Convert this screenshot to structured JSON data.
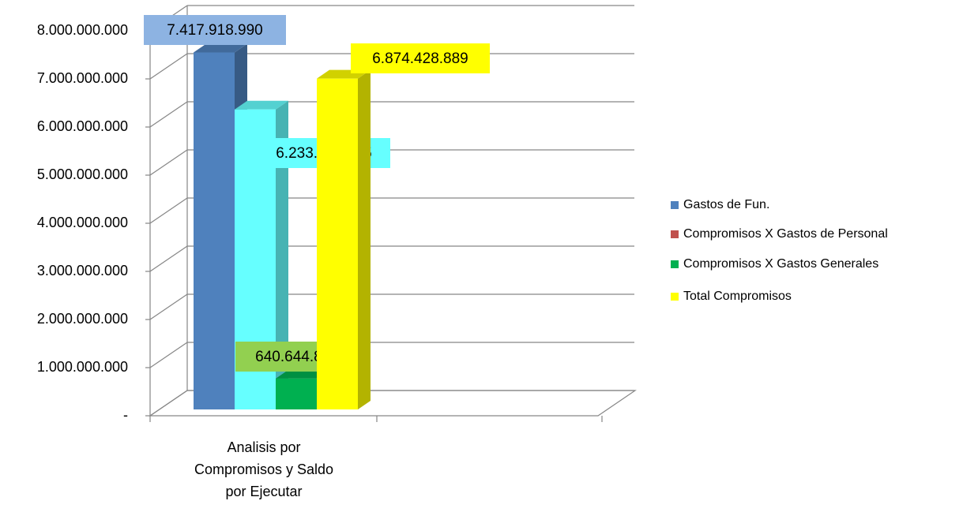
{
  "chart_data": {
    "type": "bar3d",
    "categories": [
      "Analisis por Compromisos y Saldo por Ejecutar"
    ],
    "series": [
      {
        "name": "Gastos de Fun.",
        "color": "#4f81bd",
        "label_color": "#8db3e2",
        "values": [
          7417918990
        ],
        "value_labels": [
          "7.417.918.990"
        ]
      },
      {
        "name": "Compromisos X Gastos de Personal",
        "color": "#c0504d",
        "bar_color": "#66ffff",
        "label_color": "#66ffff",
        "values": [
          6233784045
        ],
        "value_labels": [
          "6.233.784.045"
        ]
      },
      {
        "name": "Compromisos X Gastos Generales",
        "color": "#00b050",
        "label_color": "#92d050",
        "values": [
          640644844
        ],
        "value_labels": [
          "640.644.844"
        ]
      },
      {
        "name": "Total Compromisos",
        "color": "#ffff00",
        "label_color": "#ffff00",
        "values": [
          6874428889
        ],
        "value_labels": [
          "6.874.428.889"
        ]
      }
    ],
    "ylim": [
      0,
      8000000000
    ],
    "yticks": [
      {
        "value": 0,
        "label": "-"
      },
      {
        "value": 1000000000,
        "label": "1.000.000.000"
      },
      {
        "value": 2000000000,
        "label": "2.000.000.000"
      },
      {
        "value": 3000000000,
        "label": "3.000.000.000"
      },
      {
        "value": 4000000000,
        "label": "4.000.000.000"
      },
      {
        "value": 5000000000,
        "label": "5.000.000.000"
      },
      {
        "value": 6000000000,
        "label": "6.000.000.000"
      },
      {
        "value": 7000000000,
        "label": "7.000.000.000"
      },
      {
        "value": 8000000000,
        "label": "8.000.000.000"
      }
    ],
    "grid": true,
    "legend": "right"
  }
}
